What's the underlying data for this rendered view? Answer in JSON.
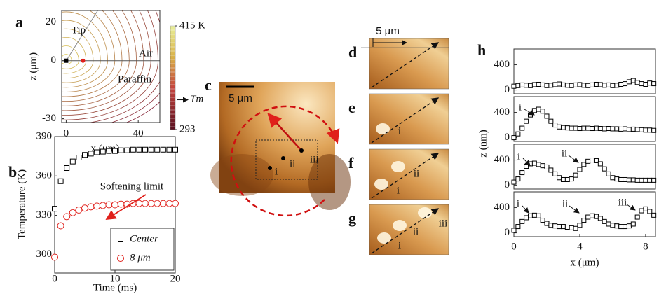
{
  "chart_data": [
    {
      "type": "contour",
      "panel": "a",
      "xlabel": "x (μm)",
      "ylabel": "z (μm)",
      "xlim": [
        -2.5,
        52
      ],
      "ylim": [
        -32,
        26
      ],
      "xticks": [
        0,
        40
      ],
      "yticks": [
        20,
        0,
        -30
      ],
      "annotations": [
        "Tip",
        "Air",
        "Paraffin"
      ],
      "clim": [
        293,
        415
      ],
      "cticks": [
        {
          "value": 415,
          "label": "415 K"
        },
        293,
        {
          "value": 328,
          "label": "Tm"
        }
      ]
    },
    {
      "type": "scatter",
      "panel": "b",
      "xlabel": "Time (ms)",
      "ylabel": "Temperature (K)",
      "x": [
        0,
        1,
        2,
        3,
        4,
        5,
        6,
        7,
        8,
        9,
        10,
        11,
        12,
        13,
        14,
        15,
        16,
        17,
        18,
        19,
        20
      ],
      "series": [
        {
          "name": "Center",
          "color": "#000000",
          "marker": "square",
          "values": [
            335,
            356,
            366,
            371,
            374,
            376,
            377,
            378,
            378.5,
            379,
            379,
            379.5,
            379.5,
            380,
            380,
            380,
            380,
            380,
            380,
            380,
            380
          ]
        },
        {
          "name": "8 μm",
          "color": "#e0201b",
          "marker": "circle",
          "values": [
            298,
            322,
            329,
            332,
            334,
            335.5,
            336.5,
            337,
            337.5,
            338,
            338,
            338.5,
            338.5,
            339,
            339,
            339,
            339,
            339,
            339,
            339,
            339
          ]
        }
      ],
      "xlim": [
        0,
        20
      ],
      "ylim": [
        286,
        390
      ],
      "xticks": [
        0,
        10,
        20
      ],
      "yticks": [
        300,
        330,
        360,
        390
      ],
      "annotation": "Softening limit"
    },
    {
      "type": "profile",
      "panel": "h",
      "xlabel": "x (μm)",
      "ylabel": "z (nm)",
      "x": [
        0,
        0.25,
        0.5,
        0.75,
        1,
        1.25,
        1.5,
        1.75,
        2,
        2.25,
        2.5,
        2.75,
        3,
        3.25,
        3.5,
        3.75,
        4,
        4.25,
        4.5,
        4.75,
        5,
        5.25,
        5.5,
        5.75,
        6,
        6.25,
        6.5,
        6.75,
        7,
        7.25,
        7.5,
        7.75,
        8,
        8.25,
        8.5
      ],
      "xlim": [
        0,
        8.6
      ],
      "ylim": [
        -60,
        650
      ],
      "xticks": [
        0,
        4,
        8
      ],
      "yticks": [
        0,
        400
      ],
      "series": [
        {
          "color": "#000000",
          "values": [
            60,
            70,
            80,
            75,
            70,
            85,
            90,
            80,
            70,
            75,
            85,
            95,
            80,
            75,
            70,
            80,
            85,
            75,
            70,
            80,
            90,
            85,
            75,
            80,
            70,
            75,
            90,
            100,
            130,
            150,
            120,
            100,
            90,
            110,
            100
          ]
        },
        {
          "color": "#000000",
          "values": [
            0,
            60,
            150,
            260,
            360,
            430,
            450,
            420,
            340,
            260,
            200,
            170,
            160,
            155,
            150,
            150,
            145,
            150,
            150,
            145,
            150,
            145,
            140,
            145,
            140,
            140,
            135,
            140,
            130,
            135,
            130,
            125,
            120,
            120,
            115
          ],
          "annotations": [
            "i"
          ]
        },
        {
          "color": "#000000",
          "values": [
            50,
            100,
            200,
            300,
            340,
            350,
            330,
            310,
            290,
            240,
            180,
            120,
            90,
            90,
            100,
            160,
            250,
            330,
            380,
            400,
            390,
            340,
            260,
            180,
            120,
            100,
            90,
            90,
            85,
            85,
            80,
            80,
            80,
            80,
            80
          ],
          "annotations": [
            "i",
            "ii"
          ]
        },
        {
          "color": "#000000",
          "values": [
            40,
            100,
            180,
            240,
            270,
            280,
            270,
            200,
            150,
            120,
            110,
            100,
            100,
            90,
            80,
            70,
            120,
            200,
            250,
            270,
            260,
            230,
            180,
            140,
            120,
            110,
            100,
            100,
            110,
            140,
            250,
            350,
            380,
            340,
            280
          ],
          "annotations": [
            "i",
            "ii",
            "iii"
          ]
        }
      ]
    }
  ],
  "images": [
    {
      "panel": "c",
      "scale_bar": "5 µm",
      "labels": [
        "i",
        "ii",
        "iii"
      ]
    },
    {
      "panel": "d",
      "scale_bar": "5 µm"
    },
    {
      "panel": "e",
      "labels": [
        "i"
      ]
    },
    {
      "panel": "f",
      "labels": [
        "ii",
        "i"
      ]
    },
    {
      "panel": "g",
      "labels": [
        "ii",
        "iii",
        "i"
      ]
    }
  ]
}
